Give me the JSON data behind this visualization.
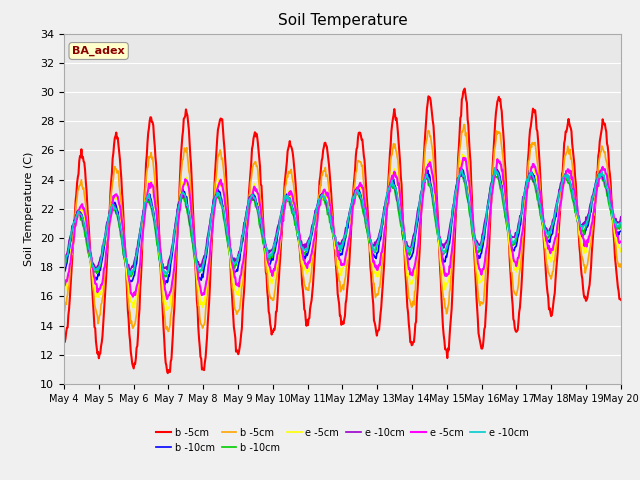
{
  "title": "Soil Temperature",
  "ylabel": "Soil Temperature (C)",
  "ylim": [
    10,
    34
  ],
  "yticks": [
    10,
    12,
    14,
    16,
    18,
    20,
    22,
    24,
    26,
    28,
    30,
    32,
    34
  ],
  "start_day": 4,
  "end_day": 19,
  "n_days": 16,
  "pts_per_day": 48,
  "annotation": "BA_adex",
  "annotation_color": "#8B0000",
  "annotation_bg": "#FFFFCC",
  "series": [
    {
      "label": "b -5cm",
      "color": "#FF0000",
      "lw": 1.5
    },
    {
      "label": "b -10cm",
      "color": "#0000FF",
      "lw": 1.2
    },
    {
      "label": "b -5cm",
      "color": "#FFA500",
      "lw": 1.2
    },
    {
      "label": "b -10cm",
      "color": "#00CC00",
      "lw": 1.2
    },
    {
      "label": "e -5cm",
      "color": "#FFFF00",
      "lw": 1.2
    },
    {
      "label": "e -10cm",
      "color": "#9900CC",
      "lw": 1.2
    },
    {
      "label": "e -5cm",
      "color": "#FF00FF",
      "lw": 1.5
    },
    {
      "label": "e -10cm",
      "color": "#00CCCC",
      "lw": 1.2
    }
  ],
  "fig_bg": "#F0F0F0",
  "plot_bg": "#E8E8E8",
  "grid_color": "#FFFFFF"
}
